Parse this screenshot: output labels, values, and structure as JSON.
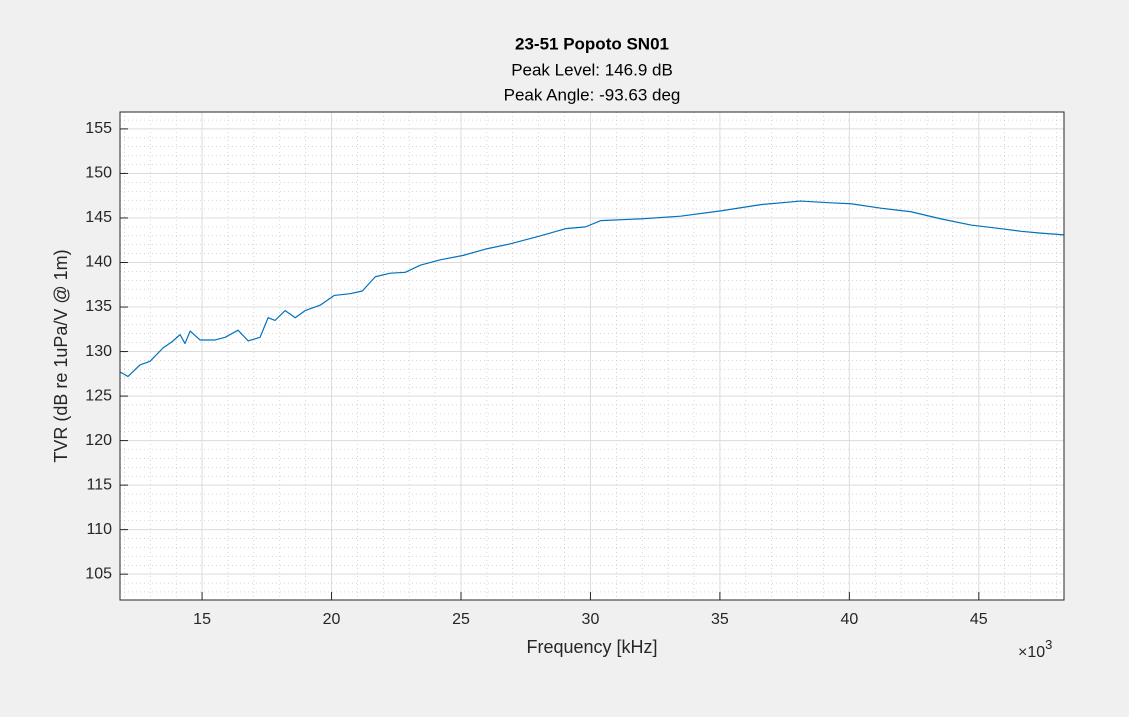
{
  "chart_data": {
    "type": "line",
    "title": "23-51 Popoto SN01",
    "subtitle": [
      "Peak Level: 146.9 dB",
      "Peak Angle: -93.63 deg"
    ],
    "xlabel": "Frequency [kHz]",
    "ylabel": "TVR (dB re 1uPa/V @ 1m)",
    "x_exponent": {
      "base": "×10",
      "power": "3"
    },
    "grid": true,
    "minor_grid": true,
    "xlim": [
      11830,
      48290
    ],
    "ylim": [
      102.1,
      156.9
    ],
    "xticks": [
      {
        "value": 15000,
        "label": "15"
      },
      {
        "value": 20000,
        "label": "20"
      },
      {
        "value": 25000,
        "label": "25"
      },
      {
        "value": 30000,
        "label": "30"
      },
      {
        "value": 35000,
        "label": "35"
      },
      {
        "value": 40000,
        "label": "40"
      },
      {
        "value": 45000,
        "label": "45"
      }
    ],
    "yticks": [
      105,
      110,
      115,
      120,
      125,
      130,
      135,
      140,
      145,
      150,
      155
    ],
    "series": [
      {
        "color": "#0072bd",
        "x": [
          11830,
          12140,
          12600,
          12990,
          13490,
          13840,
          14150,
          14340,
          14540,
          14920,
          15500,
          15890,
          16390,
          16780,
          17240,
          17550,
          17820,
          18210,
          18600,
          18980,
          19560,
          20100,
          20720,
          21190,
          21690,
          22270,
          22850,
          23430,
          24200,
          25090,
          25940,
          26910,
          28070,
          29040,
          29810,
          30390,
          31940,
          33480,
          35030,
          36580,
          38120,
          39280,
          40060,
          41220,
          42380,
          43540,
          44700,
          45860,
          46630,
          47400,
          48290
        ],
        "values": [
          127.7,
          127.2,
          128.5,
          128.9,
          130.4,
          131.1,
          131.9,
          130.9,
          132.3,
          131.3,
          131.3,
          131.6,
          132.4,
          131.2,
          131.6,
          133.8,
          133.5,
          134.6,
          133.8,
          134.6,
          135.2,
          136.3,
          136.5,
          136.8,
          138.4,
          138.8,
          138.9,
          139.7,
          140.3,
          140.8,
          141.5,
          142.1,
          143.0,
          143.8,
          144.0,
          144.7,
          144.9,
          145.2,
          145.8,
          146.5,
          146.9,
          146.7,
          146.6,
          146.1,
          145.7,
          144.9,
          144.2,
          143.8,
          143.5,
          143.3,
          143.1
        ]
      }
    ]
  }
}
